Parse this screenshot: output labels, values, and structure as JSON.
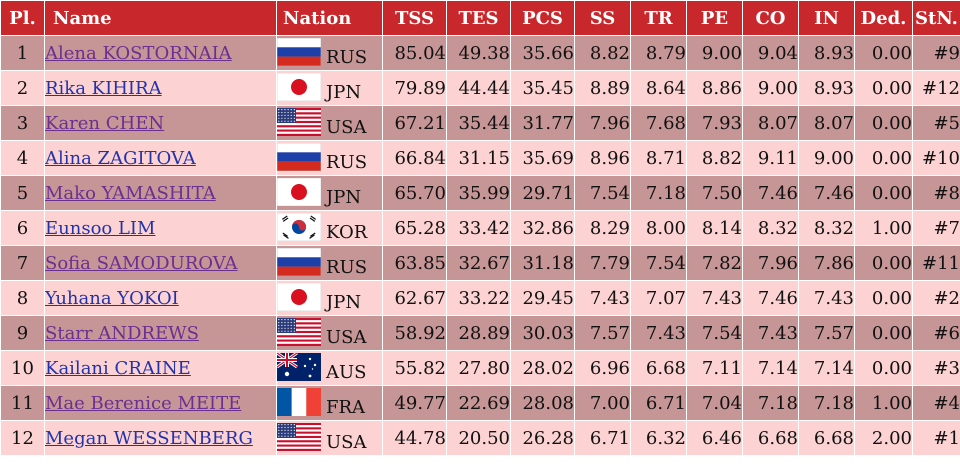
{
  "headers": [
    "Pl.",
    "Name",
    "Nation",
    "TSS",
    "TES",
    "PCS",
    "SS",
    "TR",
    "PE",
    "CO",
    "IN",
    "Ded.",
    "StN."
  ],
  "rows": [
    {
      "pl": "1",
      "name": "Alena KOSTORNAIA",
      "nation": "RUS",
      "flag": "russia-flag-icon",
      "tss": "85.04",
      "tes": "49.38",
      "pcs": "35.66",
      "ss": "8.82",
      "tr": "8.79",
      "pe": "9.00",
      "co": "9.04",
      "in": "8.93",
      "ded": "0.00",
      "stn": "#9"
    },
    {
      "pl": "2",
      "name": "Rika KIHIRA",
      "nation": "JPN",
      "flag": "japan-flag-icon",
      "tss": "79.89",
      "tes": "44.44",
      "pcs": "35.45",
      "ss": "8.89",
      "tr": "8.64",
      "pe": "8.86",
      "co": "9.00",
      "in": "8.93",
      "ded": "0.00",
      "stn": "#12"
    },
    {
      "pl": "3",
      "name": "Karen CHEN",
      "nation": "USA",
      "flag": "usa-flag-icon",
      "tss": "67.21",
      "tes": "35.44",
      "pcs": "31.77",
      "ss": "7.96",
      "tr": "7.68",
      "pe": "7.93",
      "co": "8.07",
      "in": "8.07",
      "ded": "0.00",
      "stn": "#5"
    },
    {
      "pl": "4",
      "name": "Alina ZAGITOVA",
      "nation": "RUS",
      "flag": "russia-flag-icon",
      "tss": "66.84",
      "tes": "31.15",
      "pcs": "35.69",
      "ss": "8.96",
      "tr": "8.71",
      "pe": "8.82",
      "co": "9.11",
      "in": "9.00",
      "ded": "0.00",
      "stn": "#10"
    },
    {
      "pl": "5",
      "name": "Mako YAMASHITA",
      "nation": "JPN",
      "flag": "japan-flag-icon",
      "tss": "65.70",
      "tes": "35.99",
      "pcs": "29.71",
      "ss": "7.54",
      "tr": "7.18",
      "pe": "7.50",
      "co": "7.46",
      "in": "7.46",
      "ded": "0.00",
      "stn": "#8"
    },
    {
      "pl": "6",
      "name": "Eunsoo LIM",
      "nation": "KOR",
      "flag": "korea-flag-icon",
      "tss": "65.28",
      "tes": "33.42",
      "pcs": "32.86",
      "ss": "8.29",
      "tr": "8.00",
      "pe": "8.14",
      "co": "8.32",
      "in": "8.32",
      "ded": "1.00",
      "stn": "#7"
    },
    {
      "pl": "7",
      "name": "Sofia SAMODUROVA",
      "nation": "RUS",
      "flag": "russia-flag-icon",
      "tss": "63.85",
      "tes": "32.67",
      "pcs": "31.18",
      "ss": "7.79",
      "tr": "7.54",
      "pe": "7.82",
      "co": "7.96",
      "in": "7.86",
      "ded": "0.00",
      "stn": "#11"
    },
    {
      "pl": "8",
      "name": "Yuhana YOKOI",
      "nation": "JPN",
      "flag": "japan-flag-icon",
      "tss": "62.67",
      "tes": "33.22",
      "pcs": "29.45",
      "ss": "7.43",
      "tr": "7.07",
      "pe": "7.43",
      "co": "7.46",
      "in": "7.43",
      "ded": "0.00",
      "stn": "#2"
    },
    {
      "pl": "9",
      "name": "Starr ANDREWS",
      "nation": "USA",
      "flag": "usa-flag-icon",
      "tss": "58.92",
      "tes": "28.89",
      "pcs": "30.03",
      "ss": "7.57",
      "tr": "7.43",
      "pe": "7.54",
      "co": "7.43",
      "in": "7.57",
      "ded": "0.00",
      "stn": "#6"
    },
    {
      "pl": "10",
      "name": "Kailani CRAINE",
      "nation": "AUS",
      "flag": "australia-flag-icon",
      "tss": "55.82",
      "tes": "27.80",
      "pcs": "28.02",
      "ss": "6.96",
      "tr": "6.68",
      "pe": "7.11",
      "co": "7.14",
      "in": "7.14",
      "ded": "0.00",
      "stn": "#3"
    },
    {
      "pl": "11",
      "name": "Mae Berenice MEITE",
      "nation": "FRA",
      "flag": "france-flag-icon",
      "tss": "49.77",
      "tes": "22.69",
      "pcs": "28.08",
      "ss": "7.00",
      "tr": "6.71",
      "pe": "7.04",
      "co": "7.18",
      "in": "7.18",
      "ded": "1.00",
      "stn": "#4"
    },
    {
      "pl": "12",
      "name": "Megan WESSENBERG",
      "nation": "USA",
      "flag": "usa-flag-icon",
      "tss": "44.78",
      "tes": "20.50",
      "pcs": "26.28",
      "ss": "6.71",
      "tr": "6.32",
      "pe": "6.46",
      "co": "6.68",
      "in": "6.68",
      "ded": "2.00",
      "stn": "#1"
    }
  ],
  "colors": {
    "header": "#c8282b",
    "row_odd": "#c69596",
    "row_even": "#fdd2d2",
    "link_visited": "#6b2f8f",
    "link": "#2233aa"
  }
}
